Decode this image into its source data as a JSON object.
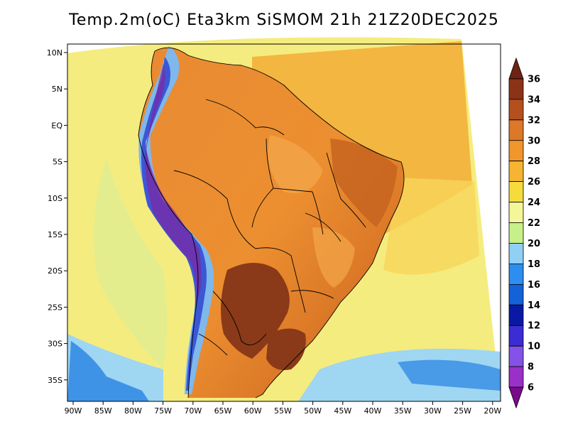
{
  "title": "Temp.2m(oC) Eta3km SiSMOM 21h 21Z20DEC2025",
  "map": {
    "lon_range": [
      -91,
      -20
    ],
    "lat_range": [
      -38,
      12
    ],
    "x_ticks": [
      "90W",
      "85W",
      "80W",
      "75W",
      "70W",
      "65W",
      "60W",
      "55W",
      "50W",
      "45W",
      "40W",
      "35W",
      "30W",
      "25W",
      "20W"
    ],
    "y_ticks": [
      "10N",
      "5N",
      "EQ",
      "5S",
      "10S",
      "15S",
      "20S",
      "25S",
      "30S",
      "35S"
    ],
    "ocean_color": "#f5ec7f",
    "land_color": "#e9852f"
  },
  "colorbar": {
    "labels": [
      "6",
      "8",
      "10",
      "12",
      "14",
      "16",
      "18",
      "20",
      "22",
      "24",
      "26",
      "28",
      "30",
      "32",
      "34",
      "36"
    ],
    "colors": [
      "#7a0a8c",
      "#9b30c8",
      "#8452e8",
      "#3c2cd4",
      "#0a19a4",
      "#1462d8",
      "#2e8ef0",
      "#8fd0f4",
      "#c8f08a",
      "#f5f59a",
      "#f5dc3c",
      "#f5b432",
      "#f0962d",
      "#dc7828",
      "#b4501e",
      "#8c3219",
      "#6e2314"
    ]
  }
}
